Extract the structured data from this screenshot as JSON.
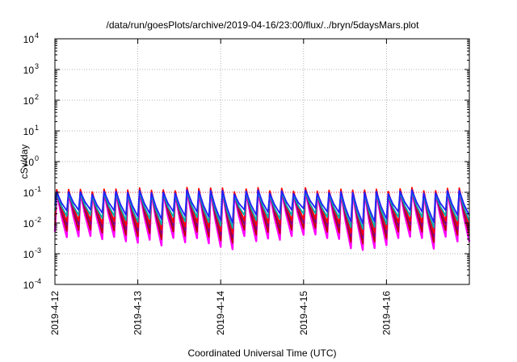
{
  "chart_data": {
    "type": "line",
    "title": "/data/run/goesPlots/archive/2019-04-16/23:00/flux/../bryn/5daysMars.plot",
    "xlabel": "Coordinated Universal Time (UTC)",
    "ylabel": "cSv/day",
    "y_scale": "log",
    "ylim": [
      0.0001,
      10000
    ],
    "y_ticks": [
      {
        "base": "10",
        "exp": "-4"
      },
      {
        "base": "10",
        "exp": "-3"
      },
      {
        "base": "10",
        "exp": "-2"
      },
      {
        "base": "10",
        "exp": "-1"
      },
      {
        "base": "10",
        "exp": "0"
      },
      {
        "base": "10",
        "exp": "1"
      },
      {
        "base": "10",
        "exp": "2"
      },
      {
        "base": "10",
        "exp": "3"
      },
      {
        "base": "10",
        "exp": "4"
      }
    ],
    "xlim": [
      "2019-04-12",
      "2019-04-17"
    ],
    "x_ticks": [
      "2019-4-12",
      "2019-4-13",
      "2019-4-14",
      "2019-4-15",
      "2019-4-16"
    ],
    "grid": true,
    "reference_line": {
      "y": 0.1,
      "color": "#ff0000"
    },
    "sawtooth": {
      "cycles_per_day": 7,
      "peak_envelope": [
        0.11,
        0.13
      ],
      "trough_envelope": [
        0.0015,
        0.02
      ]
    },
    "series": [
      {
        "color": "#ff00ff",
        "peak": 0.1,
        "trough": 0.0025
      },
      {
        "color": "#c00000",
        "peak": 0.11,
        "trough": 0.004
      },
      {
        "color": "#7f007f",
        "peak": 0.1,
        "trough": 0.006
      },
      {
        "color": "#ff0000",
        "peak": 0.12,
        "trough": 0.008
      },
      {
        "color": "#00aaaa",
        "peak": 0.09,
        "trough": 0.012
      },
      {
        "color": "#2020ff",
        "peak": 0.1,
        "trough": 0.018
      }
    ]
  }
}
